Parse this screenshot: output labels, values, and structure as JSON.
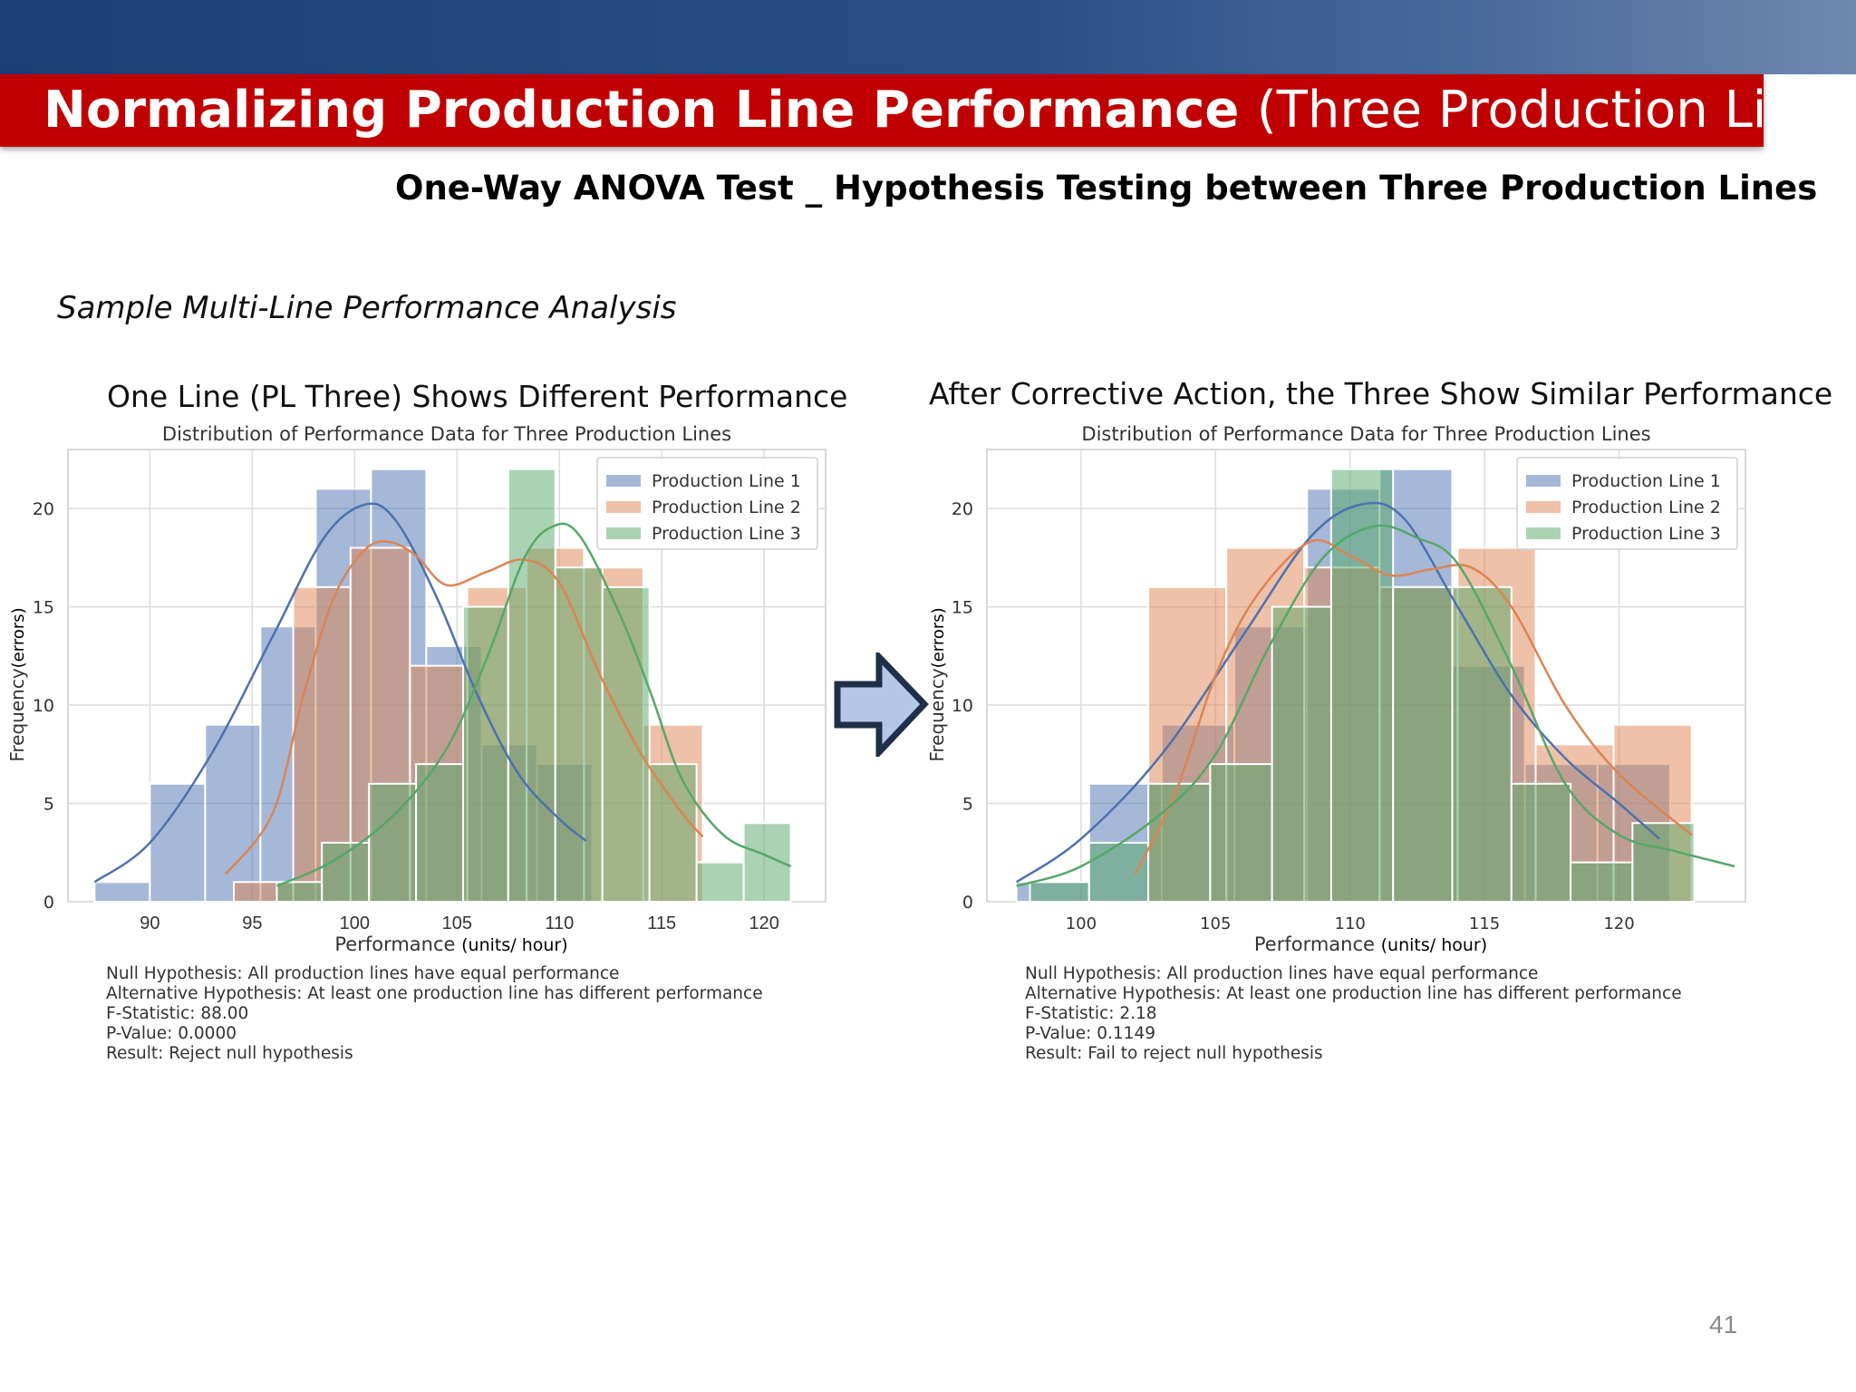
{
  "slide": {
    "title_bold": "Normalizing Production Line Performance",
    "title_rest": "(Three Production Lines)",
    "subtitle": "One-Way ANOVA Test _ Hypothesis Testing between Three Production Lines",
    "section_label": "Sample Multi-Line Performance Analysis",
    "page_number": "41",
    "colors": {
      "header_red": "#c00000",
      "header_blue": "#1b3f76",
      "arrow_fill": "#b4c7e7",
      "arrow_stroke": "#1f2f4a"
    },
    "arrow_icon": "right-arrow-icon"
  },
  "charts": [
    {
      "heading": "One Line (PL Three) Shows Different Performance",
      "stats": [
        "Null Hypothesis: All production lines have equal performance",
        "Alternative Hypothesis: At least one production line has different performance",
        "F-Statistic: 88.00",
        "P-Value: 0.0000",
        "Result: Reject null hypothesis"
      ]
    },
    {
      "heading": "After Corrective Action, the Three Show Similar Performance",
      "stats": [
        "Null Hypothesis: All production lines have equal performance",
        "Alternative Hypothesis: At least one production line has different performance",
        "F-Statistic: 2.18",
        "P-Value: 0.1149",
        "Result: Fail to reject null hypothesis"
      ]
    }
  ],
  "chart_data": [
    {
      "type": "bar",
      "subtype": "histogram_with_kde",
      "title": "Distribution of Performance Data for Three Production Lines",
      "xlabel": "Performance",
      "xlabel_unit": "(units/ hour)",
      "ylabel": "Frequency",
      "ylabel_unit": "(errors)",
      "xlim": [
        86,
        123
      ],
      "ylim": [
        0,
        23
      ],
      "xticks": [
        90,
        95,
        100,
        105,
        110,
        115,
        120
      ],
      "yticks": [
        0,
        5,
        10,
        15,
        20
      ],
      "grid": true,
      "legend_position": "top-right",
      "series": [
        {
          "name": "Production Line 1",
          "color": "#4c72b0",
          "bins": [
            [
              87.3,
              90,
              1
            ],
            [
              90,
              92.7,
              6
            ],
            [
              92.7,
              95.4,
              9
            ],
            [
              95.4,
              98.1,
              14
            ],
            [
              98.1,
              100.8,
              21
            ],
            [
              100.8,
              103.5,
              22
            ],
            [
              103.5,
              106.2,
              13
            ],
            [
              106.2,
              108.9,
              8
            ],
            [
              108.9,
              111.6,
              7
            ]
          ],
          "kde": [
            [
              87.3,
              1.0
            ],
            [
              90,
              3.0
            ],
            [
              93,
              7.5
            ],
            [
              96,
              13.5
            ],
            [
              98.5,
              18.5
            ],
            [
              100.5,
              20.2
            ],
            [
              102,
              19.4
            ],
            [
              104,
              15.5
            ],
            [
              106,
              10.5
            ],
            [
              108,
              6.5
            ],
            [
              110,
              4.2
            ],
            [
              111.3,
              3.1
            ]
          ]
        },
        {
          "name": "Production Line 2",
          "color": "#dd8452",
          "bins": [
            [
              94.1,
              97,
              1
            ],
            [
              97,
              99.8,
              16
            ],
            [
              99.8,
              102.7,
              18
            ],
            [
              102.7,
              105.5,
              12
            ],
            [
              105.5,
              108.4,
              16
            ],
            [
              108.4,
              111.2,
              18
            ],
            [
              111.2,
              114.1,
              17
            ],
            [
              114.1,
              117,
              9
            ]
          ],
          "kde": [
            [
              93.7,
              1.4
            ],
            [
              96,
              4.5
            ],
            [
              97.5,
              10.5
            ],
            [
              99,
              15.5
            ],
            [
              100.5,
              17.9
            ],
            [
              101.7,
              18.3
            ],
            [
              103,
              17.6
            ],
            [
              104.5,
              16.1
            ],
            [
              106.5,
              16.8
            ],
            [
              108.3,
              17.4
            ],
            [
              110,
              16.2
            ],
            [
              112,
              11.5
            ],
            [
              114,
              7.5
            ],
            [
              116,
              4.5
            ],
            [
              117,
              3.3
            ]
          ]
        },
        {
          "name": "Production Line 3",
          "color": "#55a868",
          "bins": [
            [
              96.2,
              98.4,
              1
            ],
            [
              98.4,
              100.7,
              3
            ],
            [
              100.7,
              103,
              6
            ],
            [
              103,
              105.3,
              7
            ],
            [
              105.3,
              107.5,
              15
            ],
            [
              107.5,
              109.8,
              22
            ],
            [
              109.8,
              112.1,
              17
            ],
            [
              112.1,
              114.4,
              16
            ],
            [
              114.4,
              116.7,
              7
            ],
            [
              116.7,
              119,
              2
            ],
            [
              119,
              121.3,
              4
            ]
          ],
          "kde": [
            [
              96.2,
              0.8
            ],
            [
              99,
              2.1
            ],
            [
              102,
              4.5
            ],
            [
              104.5,
              7.8
            ],
            [
              106.5,
              12.5
            ],
            [
              108.3,
              17.5
            ],
            [
              109.7,
              19.1
            ],
            [
              111,
              18.6
            ],
            [
              113,
              14.5
            ],
            [
              114.5,
              10.5
            ],
            [
              116,
              6.2
            ],
            [
              118,
              3.4
            ],
            [
              120,
              2.4
            ],
            [
              121.3,
              1.8
            ]
          ]
        }
      ]
    },
    {
      "type": "bar",
      "subtype": "histogram_with_kde",
      "title": "Distribution of Performance Data for Three Production Lines",
      "xlabel": "Performance",
      "xlabel_unit": "(units/ hour)",
      "ylabel": "Frequency",
      "ylabel_unit": "(errors)",
      "xlim": [
        96.5,
        124.7
      ],
      "ylim": [
        0,
        23
      ],
      "xticks": [
        100,
        105,
        110,
        115,
        120
      ],
      "yticks": [
        0,
        5,
        10,
        15,
        20
      ],
      "grid": true,
      "legend_position": "top-right",
      "series": [
        {
          "name": "Production Line 1",
          "color": "#4c72b0",
          "bins": [
            [
              97.6,
              100.3,
              1
            ],
            [
              100.3,
              103.0,
              6
            ],
            [
              103.0,
              105.7,
              9
            ],
            [
              105.7,
              108.4,
              14
            ],
            [
              108.4,
              111.1,
              21
            ],
            [
              111.1,
              113.8,
              22
            ],
            [
              113.8,
              116.5,
              12
            ],
            [
              116.5,
              119.2,
              7
            ],
            [
              119.2,
              121.9,
              7
            ]
          ],
          "kde": [
            [
              97.6,
              1.0
            ],
            [
              100,
              3.2
            ],
            [
              103,
              7.5
            ],
            [
              106,
              13.5
            ],
            [
              108.5,
              18.5
            ],
            [
              110.4,
              20.2
            ],
            [
              112,
              19.5
            ],
            [
              114,
              15.0
            ],
            [
              116,
              10.5
            ],
            [
              118,
              7.3
            ],
            [
              120,
              5.0
            ],
            [
              121.5,
              3.2
            ]
          ]
        },
        {
          "name": "Production Line 2",
          "color": "#dd8452",
          "bins": [
            [
              102.5,
              105.4,
              16
            ],
            [
              105.4,
              108.3,
              18
            ],
            [
              108.3,
              111.1,
              17
            ],
            [
              111.1,
              114.0,
              16
            ],
            [
              114.0,
              116.9,
              18
            ],
            [
              116.9,
              119.8,
              8
            ],
            [
              119.8,
              122.7,
              9
            ]
          ],
          "kde": [
            [
              102,
              1.4
            ],
            [
              103.5,
              5.5
            ],
            [
              105,
              11.5
            ],
            [
              106.5,
              15.5
            ],
            [
              108.5,
              18.3
            ],
            [
              110,
              17.6
            ],
            [
              111.5,
              16.6
            ],
            [
              113,
              16.9
            ],
            [
              114.5,
              17.0
            ],
            [
              116,
              15.0
            ],
            [
              118,
              10.0
            ],
            [
              120,
              6.5
            ],
            [
              122.7,
              3.4
            ]
          ]
        },
        {
          "name": "Production Line 3",
          "color": "#55a868",
          "bins": [
            [
              98.1,
              100.3,
              1
            ],
            [
              100.3,
              102.5,
              3
            ],
            [
              102.5,
              104.8,
              6
            ],
            [
              104.8,
              107.1,
              7
            ],
            [
              107.1,
              109.3,
              15
            ],
            [
              109.3,
              111.6,
              22
            ],
            [
              111.6,
              113.8,
              16
            ],
            [
              113.8,
              116.0,
              16
            ],
            [
              116.0,
              118.2,
              6
            ],
            [
              118.2,
              120.5,
              2
            ],
            [
              120.5,
              122.8,
              4
            ]
          ],
          "kde": [
            [
              97.6,
              0.8
            ],
            [
              100,
              1.8
            ],
            [
              103,
              4.5
            ],
            [
              105,
              7.5
            ],
            [
              107,
              13
            ],
            [
              109,
              17.5
            ],
            [
              110.9,
              19.1
            ],
            [
              112.5,
              18.5
            ],
            [
              114,
              17.2
            ],
            [
              116,
              12
            ],
            [
              118,
              6.0
            ],
            [
              120,
              3.4
            ],
            [
              122,
              2.6
            ],
            [
              124.3,
              1.8
            ]
          ]
        }
      ]
    }
  ]
}
